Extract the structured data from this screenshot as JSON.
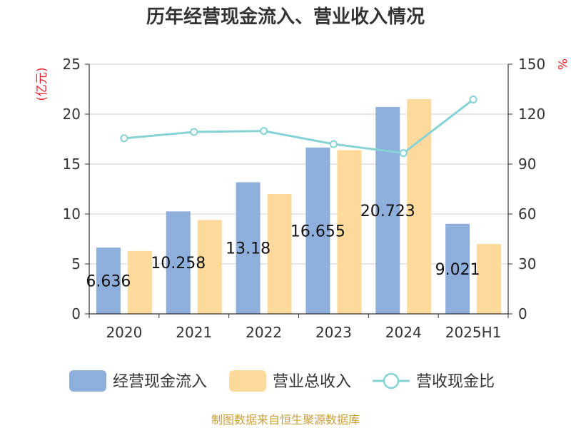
{
  "chart_data": {
    "type": "bar",
    "title": "历年经营现金流入、营业收入情况",
    "categories": [
      "2020",
      "2021",
      "2022",
      "2023",
      "2024",
      "2025H1"
    ],
    "left_axis": {
      "unit": "(亿元)",
      "ylim": [
        0,
        25
      ],
      "ticks": [
        "0",
        "5",
        "10",
        "15",
        "20",
        "25"
      ]
    },
    "right_axis": {
      "unit": "%",
      "ylim": [
        0,
        150
      ],
      "ticks": [
        "0",
        "30",
        "60",
        "90",
        "120",
        "150"
      ]
    },
    "series": [
      {
        "name": "经营现金流入",
        "type": "bar",
        "axis": "left",
        "color": "#8eaedb",
        "values": [
          6.636,
          10.258,
          13.18,
          16.655,
          20.723,
          9.021
        ],
        "labels": [
          "6.636",
          "10.258",
          "13.18",
          "16.655",
          "20.723",
          "9.021"
        ]
      },
      {
        "name": "营业总收入",
        "type": "bar",
        "axis": "left",
        "color": "#fdd99b",
        "values": [
          6.3,
          9.4,
          12.0,
          16.4,
          21.5,
          7.0
        ]
      },
      {
        "name": "营收现金比",
        "type": "line",
        "axis": "right",
        "color": "#86d3d6",
        "values": [
          105.5,
          109.3,
          109.9,
          102.0,
          96.6,
          128.8
        ]
      }
    ],
    "grid": true,
    "legend_position": "bottom"
  },
  "source": "制图数据来自恒生聚源数据库"
}
